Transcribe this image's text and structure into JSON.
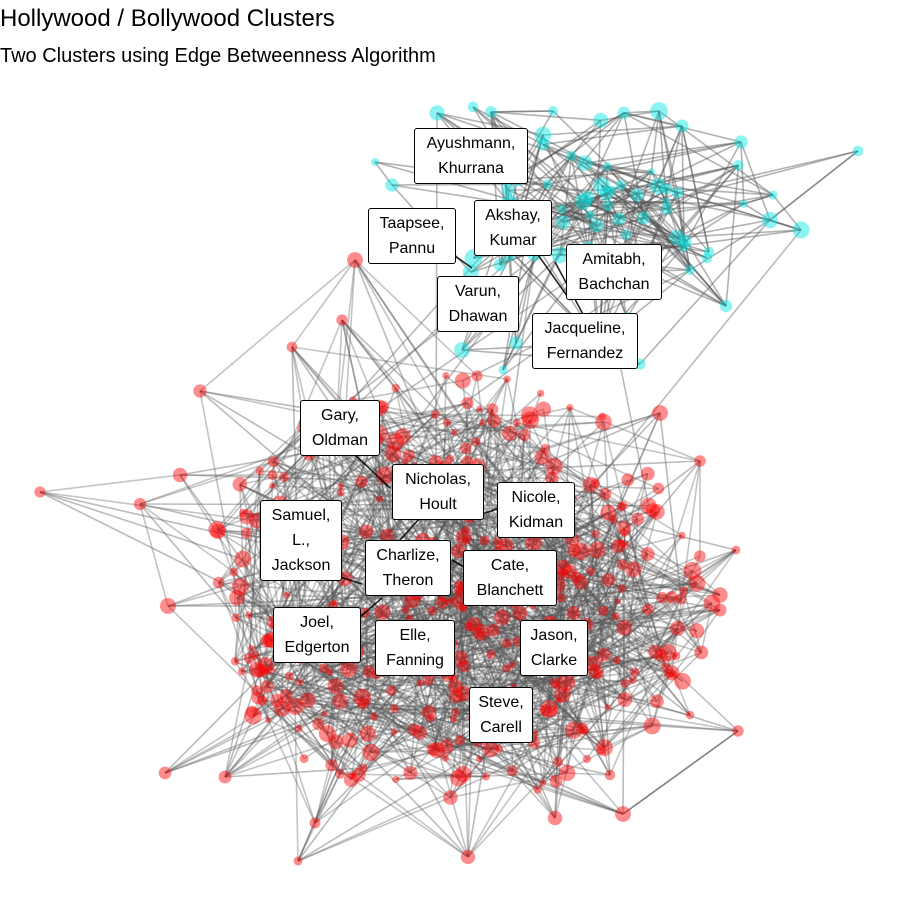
{
  "header": {
    "title": "Hollywood / Bollywood Clusters",
    "subtitle": "Two Clusters using Edge Betweenness Algorithm"
  },
  "colors": {
    "bollywood_node": "#00e5e5",
    "hollywood_node": "#ff0000",
    "edge": "#555555"
  },
  "clusters": [
    {
      "name": "bollywood",
      "color": "#00e5e5"
    },
    {
      "name": "hollywood",
      "color": "#ff0000"
    }
  ],
  "labels": {
    "ayushmann": [
      "Ayushmann,",
      "Khurrana"
    ],
    "akshay": [
      "Akshay,",
      "Kumar"
    ],
    "taapsee": [
      "Taapsee,",
      "Pannu"
    ],
    "amitabh": [
      "Amitabh,",
      "Bachchan"
    ],
    "varun": [
      "Varun,",
      "Dhawan"
    ],
    "jacqueline": [
      "Jacqueline,",
      "Fernandez"
    ],
    "gary": [
      "Gary,",
      "Oldman"
    ],
    "nicholas": [
      "Nicholas,",
      "Hoult"
    ],
    "nicole": [
      "Nicole,",
      "Kidman"
    ],
    "samuel": [
      "Samuel,",
      "L.,",
      "Jackson"
    ],
    "charlize": [
      "Charlize,",
      "Theron"
    ],
    "cate": [
      "Cate,",
      "Blanchett"
    ],
    "joel": [
      "Joel,",
      "Edgerton"
    ],
    "elle": [
      "Elle,",
      "Fanning"
    ],
    "jason": [
      "Jason,",
      "Clarke"
    ],
    "steve": [
      "Steve,",
      "Carell"
    ]
  }
}
